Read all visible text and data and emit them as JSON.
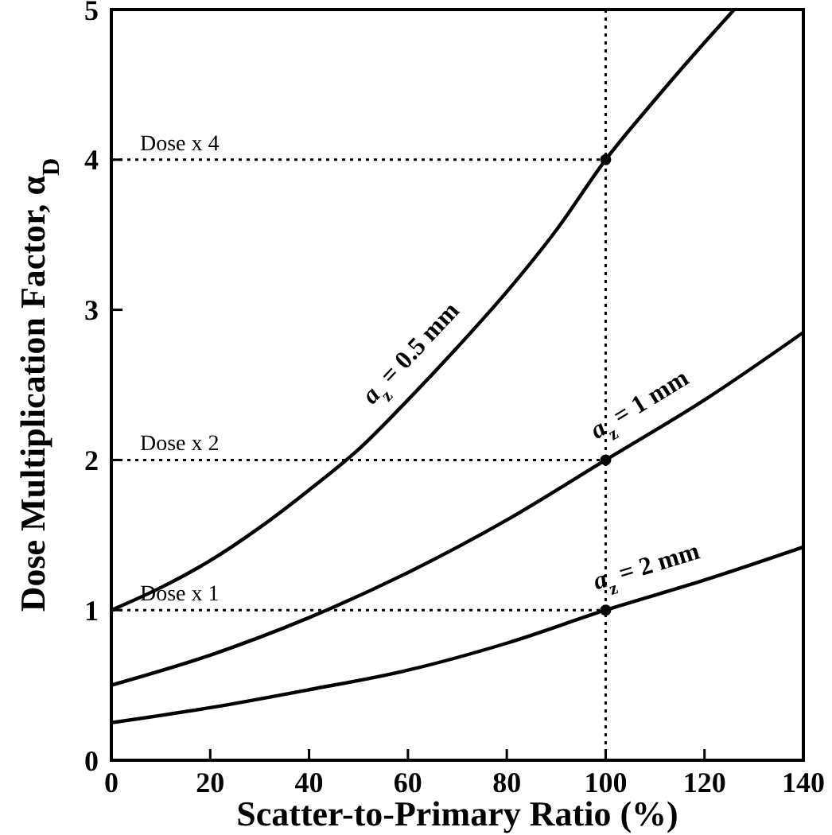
{
  "chart_data": {
    "type": "line",
    "xlabel": "Scatter-to-Primary Ratio (%)",
    "ylabel": "Dose Multiplication Factor, α$_{D}$",
    "xlim": [
      0,
      140
    ],
    "ylim": [
      0,
      5
    ],
    "xticks": [
      0,
      20,
      40,
      60,
      80,
      100,
      120,
      140
    ],
    "yticks": [
      0,
      1,
      2,
      3,
      4,
      5
    ],
    "grid": false,
    "line_style": "solid",
    "marker": "none",
    "series": [
      {
        "name": "a$_{z}$ = 0.5 mm",
        "color": "#000000",
        "x": [
          0,
          10,
          20,
          30,
          40,
          50,
          60,
          70,
          80,
          90,
          100,
          110,
          120,
          126
        ],
        "values": [
          1,
          1.15,
          1.33,
          1.55,
          1.8,
          2.07,
          2.4,
          2.75,
          3.12,
          3.53,
          4,
          4.4,
          4.78,
          5
        ]
      },
      {
        "name": "a$_{z}$ = 1 mm",
        "color": "#000000",
        "x": [
          0,
          20,
          40,
          60,
          80,
          100,
          120,
          140
        ],
        "values": [
          0.5,
          0.7,
          0.95,
          1.25,
          1.6,
          2,
          2.4,
          2.85
        ]
      },
      {
        "name": "a$_{z}$ = 2 mm",
        "color": "#000000",
        "x": [
          0,
          20,
          40,
          60,
          80,
          100,
          120,
          140
        ],
        "values": [
          0.25,
          0.35,
          0.47,
          0.6,
          0.78,
          1,
          1.2,
          1.42
        ]
      },
      {
        "type": "scatter",
        "marker": "circle",
        "color": "#000000",
        "x": [
          100,
          100,
          100
        ],
        "values": [
          4,
          2,
          1
        ]
      }
    ],
    "ref_lines": [
      {
        "axis": "x",
        "value": 100,
        "line_style": "dotted",
        "color": "#000000"
      },
      {
        "axis": "y",
        "value": 4,
        "label": "Dose x 4",
        "line_style": "dotted",
        "color": "#000000"
      },
      {
        "axis": "y",
        "value": 2,
        "label": "Dose x 2",
        "line_style": "dotted",
        "color": "#000000"
      },
      {
        "axis": "y",
        "value": 1,
        "label": "Dose x 1",
        "line_style": "dotted",
        "color": "#000000"
      }
    ]
  }
}
